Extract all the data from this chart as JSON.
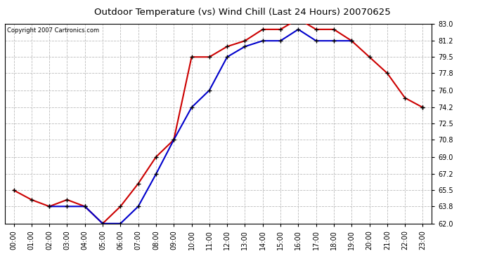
{
  "title": "Outdoor Temperature (vs) Wind Chill (Last 24 Hours) 20070625",
  "copyright": "Copyright 2007 Cartronics.com",
  "hours": [
    "00:00",
    "01:00",
    "02:00",
    "03:00",
    "04:00",
    "05:00",
    "06:00",
    "07:00",
    "08:00",
    "09:00",
    "10:00",
    "11:00",
    "12:00",
    "13:00",
    "14:00",
    "15:00",
    "16:00",
    "17:00",
    "18:00",
    "19:00",
    "20:00",
    "21:00",
    "22:00",
    "23:00"
  ],
  "temp": [
    65.5,
    64.5,
    63.8,
    64.5,
    63.8,
    62.0,
    63.8,
    66.2,
    69.0,
    70.8,
    79.5,
    79.5,
    80.6,
    81.2,
    82.4,
    82.4,
    83.5,
    82.4,
    82.4,
    81.2,
    79.5,
    77.8,
    75.2,
    74.2
  ],
  "wind_chill": [
    null,
    null,
    63.8,
    63.8,
    63.8,
    62.0,
    62.0,
    63.8,
    67.2,
    70.8,
    74.2,
    76.0,
    79.5,
    80.6,
    81.2,
    81.2,
    82.4,
    81.2,
    81.2,
    81.2,
    null,
    null,
    null,
    74.2
  ],
  "temp_color": "#cc0000",
  "wind_chill_color": "#0000cc",
  "bg_color": "#ffffff",
  "plot_bg_color": "#ffffff",
  "grid_color": "#bbbbbb",
  "ylim_min": 62.0,
  "ylim_max": 83.0,
  "yticks": [
    62.0,
    63.8,
    65.5,
    67.2,
    69.0,
    70.8,
    72.5,
    74.2,
    76.0,
    77.8,
    79.5,
    81.2,
    83.0
  ]
}
